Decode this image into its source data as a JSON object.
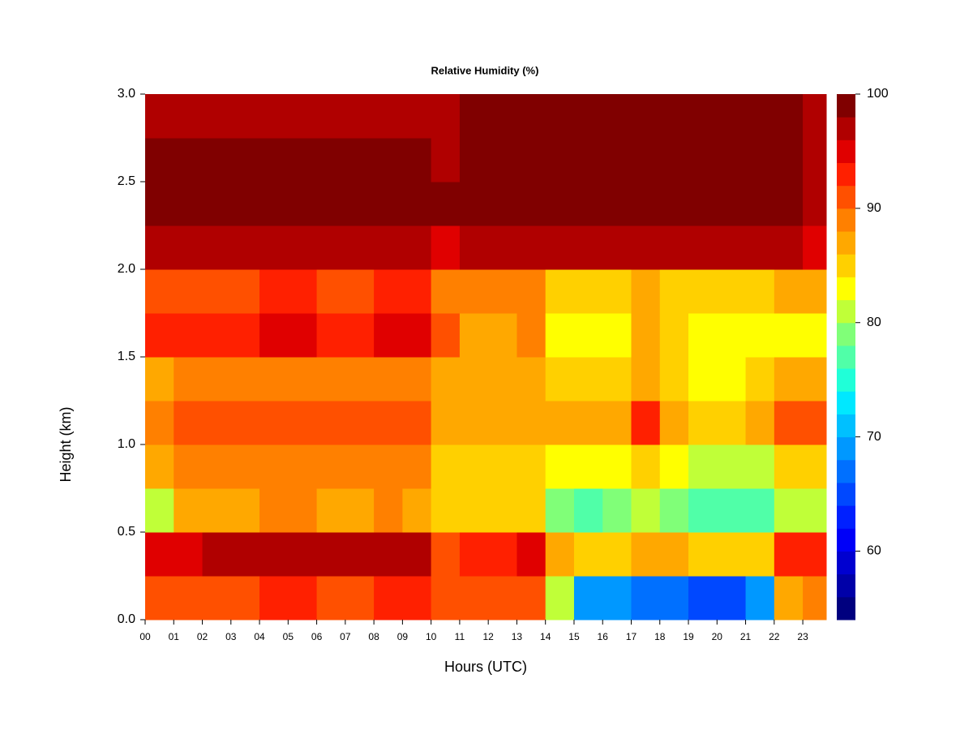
{
  "chart_data": {
    "type": "heatmap",
    "title": "Relative Humidity (%)",
    "xlabel": "Hours (UTC)",
    "ylabel": "Height (km)",
    "x": [
      0,
      1,
      2,
      3,
      4,
      5,
      6,
      7,
      8,
      9,
      10,
      11,
      12,
      13,
      14,
      15,
      16,
      17,
      18,
      19,
      20,
      21,
      22,
      23
    ],
    "y": [
      0,
      0.25,
      0.5,
      0.75,
      1,
      1.25,
      1.5,
      1.75,
      2,
      2.25,
      2.5,
      2.75
    ],
    "z": [
      [
        90,
        90,
        91,
        91,
        92,
        92,
        91,
        91,
        92,
        92,
        90,
        91,
        91,
        90,
        80,
        68,
        68,
        66,
        66,
        64,
        64,
        68,
        86,
        88
      ],
      [
        95,
        95,
        96,
        96,
        97,
        97,
        96,
        96,
        97,
        97,
        90,
        93,
        93,
        94,
        86,
        85,
        84,
        86,
        86,
        84,
        84,
        85,
        92,
        92
      ],
      [
        80,
        86,
        87,
        86,
        88,
        88,
        87,
        86,
        88,
        86,
        84,
        84,
        84,
        84,
        78,
        77,
        78,
        80,
        78,
        76,
        76,
        77,
        80,
        80
      ],
      [
        87,
        88,
        88,
        88,
        89,
        89,
        88,
        88,
        89,
        88,
        85,
        85,
        85,
        84,
        82,
        82,
        82,
        84,
        82,
        80,
        80,
        81,
        84,
        84
      ],
      [
        89,
        90,
        90,
        90,
        91,
        91,
        90,
        90,
        91,
        90,
        86,
        86,
        86,
        87,
        86,
        86,
        87,
        92,
        86,
        85,
        85,
        86,
        90,
        90
      ],
      [
        87,
        88,
        88,
        88,
        89,
        89,
        88,
        88,
        89,
        88,
        86,
        86,
        86,
        86,
        84,
        84,
        84,
        86,
        84,
        83,
        83,
        84,
        86,
        86
      ],
      [
        92,
        93,
        93,
        93,
        94,
        94,
        93,
        93,
        94,
        94,
        90,
        86,
        86,
        88,
        83,
        83,
        82,
        86,
        84,
        82,
        82,
        83,
        82,
        82
      ],
      [
        90,
        91,
        91,
        91,
        92,
        92,
        91,
        91,
        92,
        92,
        88,
        88,
        88,
        88,
        85,
        85,
        85,
        86,
        85,
        85,
        85,
        85,
        86,
        86
      ],
      [
        96,
        96,
        96,
        96,
        96,
        96,
        96,
        96,
        96,
        96,
        95,
        97,
        97,
        97,
        97,
        97,
        97,
        97,
        97,
        97,
        97,
        97,
        96,
        94
      ],
      [
        99,
        99,
        99,
        99,
        99,
        99,
        99,
        99,
        99,
        99,
        98,
        99,
        99,
        99,
        99,
        99,
        99,
        99,
        99,
        99,
        99,
        99,
        99,
        97
      ],
      [
        98,
        98,
        98,
        98,
        98,
        98,
        98,
        98,
        98,
        98,
        97,
        99.5,
        99.5,
        99.5,
        99.5,
        99.5,
        99.5,
        99.5,
        99.5,
        99.5,
        99.5,
        99.5,
        99,
        97
      ],
      [
        97,
        97,
        97,
        97,
        97,
        97,
        97,
        97,
        97,
        97,
        96,
        99,
        99,
        99,
        99,
        99,
        99,
        99,
        99,
        99,
        99,
        99,
        98,
        96
      ]
    ],
    "cell_width": 1,
    "cell_height": 0.25,
    "xlim": [
      0,
      23.82
    ],
    "ylim": [
      0,
      3
    ],
    "xticks": [
      {
        "value": 0,
        "label": "00"
      },
      {
        "value": 1,
        "label": "01"
      },
      {
        "value": 2,
        "label": "02"
      },
      {
        "value": 3,
        "label": "03"
      },
      {
        "value": 4,
        "label": "04"
      },
      {
        "value": 5,
        "label": "05"
      },
      {
        "value": 6,
        "label": "06"
      },
      {
        "value": 7,
        "label": "07"
      },
      {
        "value": 8,
        "label": "08"
      },
      {
        "value": 9,
        "label": "09"
      },
      {
        "value": 10,
        "label": "10"
      },
      {
        "value": 11,
        "label": "11"
      },
      {
        "value": 12,
        "label": "12"
      },
      {
        "value": 13,
        "label": "13"
      },
      {
        "value": 14,
        "label": "14"
      },
      {
        "value": 15,
        "label": "15"
      },
      {
        "value": 16,
        "label": "16"
      },
      {
        "value": 17,
        "label": "17"
      },
      {
        "value": 18,
        "label": "18"
      },
      {
        "value": 19,
        "label": "19"
      },
      {
        "value": 20,
        "label": "20"
      },
      {
        "value": 21,
        "label": "21"
      },
      {
        "value": 22,
        "label": "22"
      },
      {
        "value": 23,
        "label": "23"
      }
    ],
    "yticks": [
      {
        "value": 0,
        "label": "0.0"
      },
      {
        "value": 0.5,
        "label": "0.5"
      },
      {
        "value": 1,
        "label": "1.0"
      },
      {
        "value": 1.5,
        "label": "1.5"
      },
      {
        "value": 2,
        "label": "2.0"
      },
      {
        "value": 2.5,
        "label": "2.5"
      },
      {
        "value": 3,
        "label": "3.0"
      }
    ],
    "levels": [
      54,
      56,
      58,
      60,
      62,
      64,
      66,
      68,
      70,
      72,
      74,
      76,
      78,
      80,
      82,
      84,
      86,
      88,
      90,
      92,
      94,
      96,
      98,
      100
    ],
    "colors": [
      "#00007f",
      "#0000a8",
      "#0000d0",
      "#0000f8",
      "#0020ff",
      "#0048ff",
      "#0070ff",
      "#0098ff",
      "#00c0ff",
      "#00e8ff",
      "#20ffd8",
      "#50ffa8",
      "#80ff78",
      "#c0ff38",
      "#ffff00",
      "#ffd000",
      "#ffa800",
      "#ff8000",
      "#ff5000",
      "#ff2000",
      "#e00000",
      "#b00000",
      "#800000"
    ],
    "colorbar_ticks": [
      60,
      70,
      80,
      90,
      100
    ]
  }
}
